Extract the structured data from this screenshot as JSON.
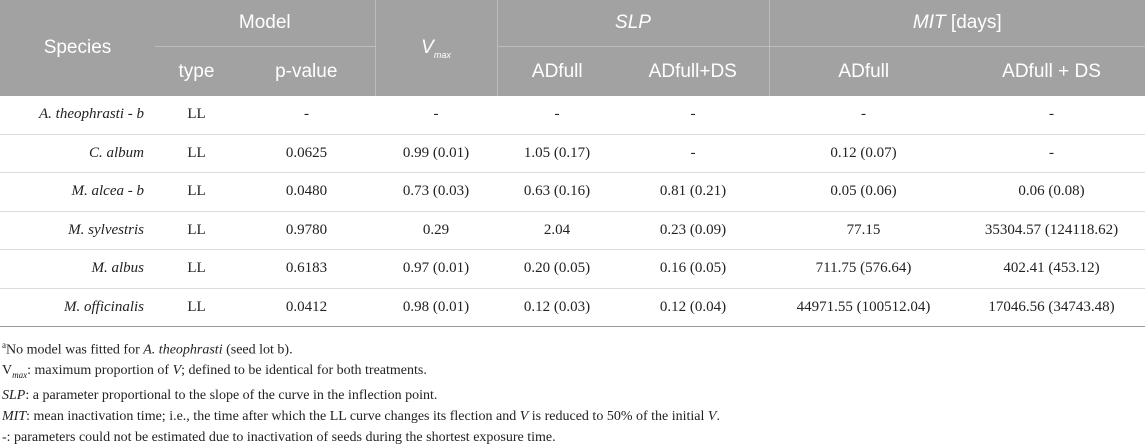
{
  "header": {
    "species": "Species",
    "model": "Model",
    "vmax_base": "V",
    "vmax_sub": "max",
    "slp": "SLP",
    "mit": "MIT",
    "mit_unit": " [days]",
    "type": "type",
    "pvalue": "p-value",
    "slp_adfull": "ADfull",
    "slp_adfullds": "ADfull+DS",
    "mit_adfull": "ADfull",
    "mit_adfullds": "ADfull + DS"
  },
  "rows": [
    {
      "species": "A. theophrasti - b",
      "type": "LL",
      "pvalue": "-",
      "vmax": "-",
      "slp_adfull": "-",
      "slp_ds": "-",
      "mit_adfull": "-",
      "mit_ds": "-"
    },
    {
      "species": "C. album",
      "type": "LL",
      "pvalue": "0.0625",
      "vmax": "0.99 (0.01)",
      "slp_adfull": "1.05 (0.17)",
      "slp_ds": "-",
      "mit_adfull": "0.12 (0.07)",
      "mit_ds": "-"
    },
    {
      "species": "M. alcea - b",
      "type": "LL",
      "pvalue": "0.0480",
      "vmax": "0.73 (0.03)",
      "slp_adfull": "0.63 (0.16)",
      "slp_ds": "0.81 (0.21)",
      "mit_adfull": "0.05 (0.06)",
      "mit_ds": "0.06 (0.08)"
    },
    {
      "species": "M. sylvestris",
      "type": "LL",
      "pvalue": "0.9780",
      "vmax": "0.29",
      "slp_adfull": "2.04",
      "slp_ds": "0.23 (0.09)",
      "mit_adfull": "77.15",
      "mit_ds": "35304.57 (124118.62)"
    },
    {
      "species": "M. albus",
      "type": "LL",
      "pvalue": "0.6183",
      "vmax": "0.97 (0.01)",
      "slp_adfull": "0.20 (0.05)",
      "slp_ds": "0.16 (0.05)",
      "mit_adfull": "711.75 (576.64)",
      "mit_ds": "402.41 (453.12)"
    },
    {
      "species": "M. officinalis",
      "type": "LL",
      "pvalue": "0.0412",
      "vmax": "0.98 (0.01)",
      "slp_adfull": "0.12 (0.03)",
      "slp_ds": "0.12 (0.04)",
      "mit_adfull": "44971.55 (100512.04)",
      "mit_ds": "17046.56 (34743.48)"
    }
  ],
  "notes": {
    "n1_sup": "a",
    "n1_pre": "No model was fitted for ",
    "n1_it": "A. theophrasti",
    "n1_post": " (seed lot b).",
    "n2_base": "V",
    "n2_sub": "max",
    "n2_text": ": maximum proportion of ",
    "n2_it": "V",
    "n2_post": "; defined to be identical for both treatments.",
    "n3_it": "SLP",
    "n3_text": ": a parameter proportional to the slope of the curve in the inflection point.",
    "n4_it": "MIT",
    "n4_text": ": mean inactivation time; i.e., the time after which the LL curve changes its flection and ",
    "n4_it2": "V",
    "n4_post": " is reduced to 50% of the initial ",
    "n4_it3": "V",
    "n4_end": ".",
    "n5": "-: parameters could not be estimated due to inactivation of seeds during the shortest exposure time."
  }
}
